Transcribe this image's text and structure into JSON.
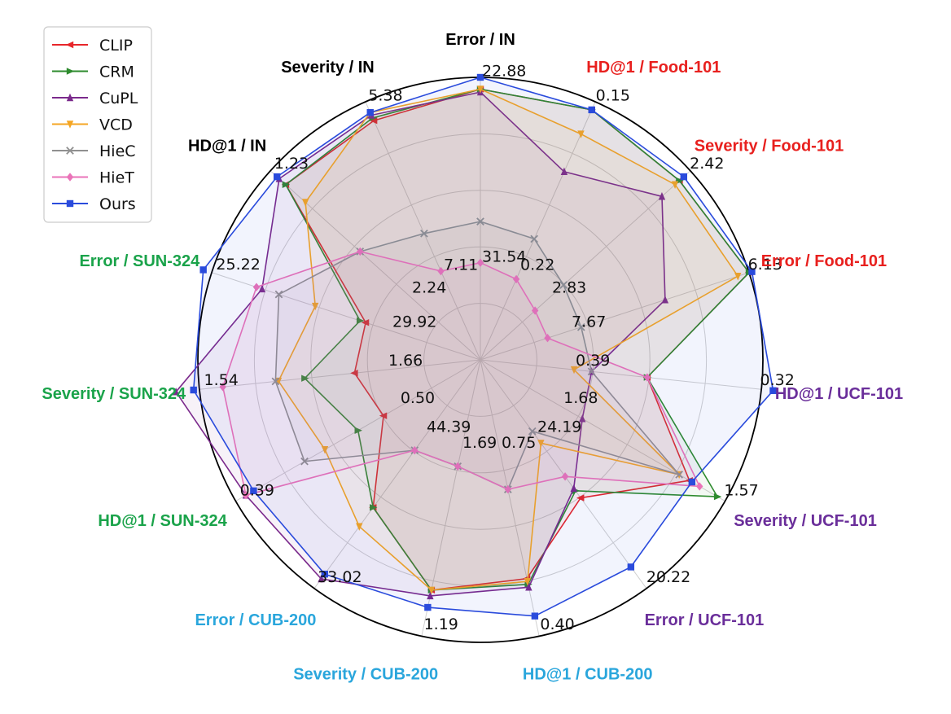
{
  "chart_data": {
    "type": "radar",
    "legend_position": "top-left",
    "grid": true,
    "axes": [
      {
        "label": "Error / IN",
        "color": "#000000",
        "inner": "31.54",
        "outer": "22.88"
      },
      {
        "label": "HD@1 / Food-101",
        "color": "#e8201e",
        "inner": "0.22",
        "outer": "0.15"
      },
      {
        "label": "Severity / Food-101",
        "color": "#e8201e",
        "inner": "2.83",
        "outer": "2.42"
      },
      {
        "label": "Error / Food-101",
        "color": "#e8201e",
        "inner": "7.67",
        "outer": "6.13"
      },
      {
        "label": "HD@1 / UCF-101",
        "color": "#6a2e9a",
        "inner": "0.39",
        "outer": "0.32"
      },
      {
        "label": "Severity / UCF-101",
        "color": "#6a2e9a",
        "inner": "1.68",
        "outer": "1.57"
      },
      {
        "label": "Error / UCF-101",
        "color": "#6a2e9a",
        "inner": "24.19",
        "outer": "20.22"
      },
      {
        "label": "HD@1 / CUB-200",
        "color": "#2aa6dc",
        "inner": "0.75",
        "outer": "0.40"
      },
      {
        "label": "Severity / CUB-200",
        "color": "#2aa6dc",
        "inner": "1.69",
        "outer": "1.19"
      },
      {
        "label": "Error / CUB-200",
        "color": "#2aa6dc",
        "inner": "44.39",
        "outer": "33.02"
      },
      {
        "label": "HD@1 / SUN-324",
        "color": "#1aa34a",
        "inner": "0.50",
        "outer": "0.39"
      },
      {
        "label": "Severity / SUN-324",
        "color": "#1aa34a",
        "inner": "1.66",
        "outer": "1.54"
      },
      {
        "label": "Error / SUN-324",
        "color": "#1aa34a",
        "inner": "29.92",
        "outer": "25.22"
      },
      {
        "label": "HD@1 / IN",
        "color": "#000000",
        "inner": "2.24",
        "outer": "1.23"
      },
      {
        "label": "Severity / IN",
        "color": "#000000",
        "inner": "7.11",
        "outer": "5.38"
      }
    ],
    "series": [
      {
        "name": "CLIP",
        "color": "#e8262a",
        "marker": "tri-left",
        "values": [
          0.92,
          0.93,
          0.91,
          0.96,
          0.57,
          0.82,
          0.58,
          0.76,
          0.8,
          0.62,
          0.38,
          0.43,
          0.41,
          0.89,
          0.89
        ]
      },
      {
        "name": "CRM",
        "color": "#2e8b2e",
        "marker": "tri-right",
        "values": [
          0.92,
          0.93,
          0.91,
          0.96,
          0.57,
          0.93,
          0.55,
          0.78,
          0.8,
          0.62,
          0.48,
          0.6,
          0.43,
          0.89,
          0.9
        ]
      },
      {
        "name": "CuPL",
        "color": "#7b2a8c",
        "marker": "tri-up",
        "values": [
          0.91,
          0.7,
          0.83,
          0.66,
          0.38,
          0.4,
          0.54,
          0.79,
          0.82,
          0.92,
          0.92,
          1.04,
          0.78,
          0.92,
          0.91
        ]
      },
      {
        "name": "VCD",
        "color": "#f5a623",
        "marker": "tri-down",
        "values": [
          0.92,
          0.84,
          0.89,
          0.92,
          0.32,
          0.78,
          0.35,
          0.77,
          0.8,
          0.7,
          0.61,
          0.69,
          0.59,
          0.8,
          0.92
        ]
      },
      {
        "name": "HieC",
        "color": "#909090",
        "marker": "x",
        "values": [
          0.47,
          0.45,
          0.38,
          0.36,
          0.38,
          0.78,
          0.3,
          0.45,
          0.37,
          0.38,
          0.69,
          0.7,
          0.72,
          0.55,
          0.47
        ]
      },
      {
        "name": "HieT",
        "color": "#ea73b8",
        "marker": "diamond",
        "values": [
          0.33,
          0.3,
          0.25,
          0.24,
          0.57,
          0.86,
          0.49,
          0.45,
          0.37,
          0.38,
          0.92,
          0.88,
          0.8,
          0.55,
          0.33
        ]
      },
      {
        "name": "Ours",
        "color": "#2a4bdc",
        "marker": "square",
        "values": [
          0.96,
          0.93,
          0.93,
          0.97,
          1.0,
          0.83,
          0.87,
          0.89,
          0.86,
          0.9,
          0.89,
          0.98,
          0.99,
          0.93,
          0.92
        ]
      }
    ]
  }
}
